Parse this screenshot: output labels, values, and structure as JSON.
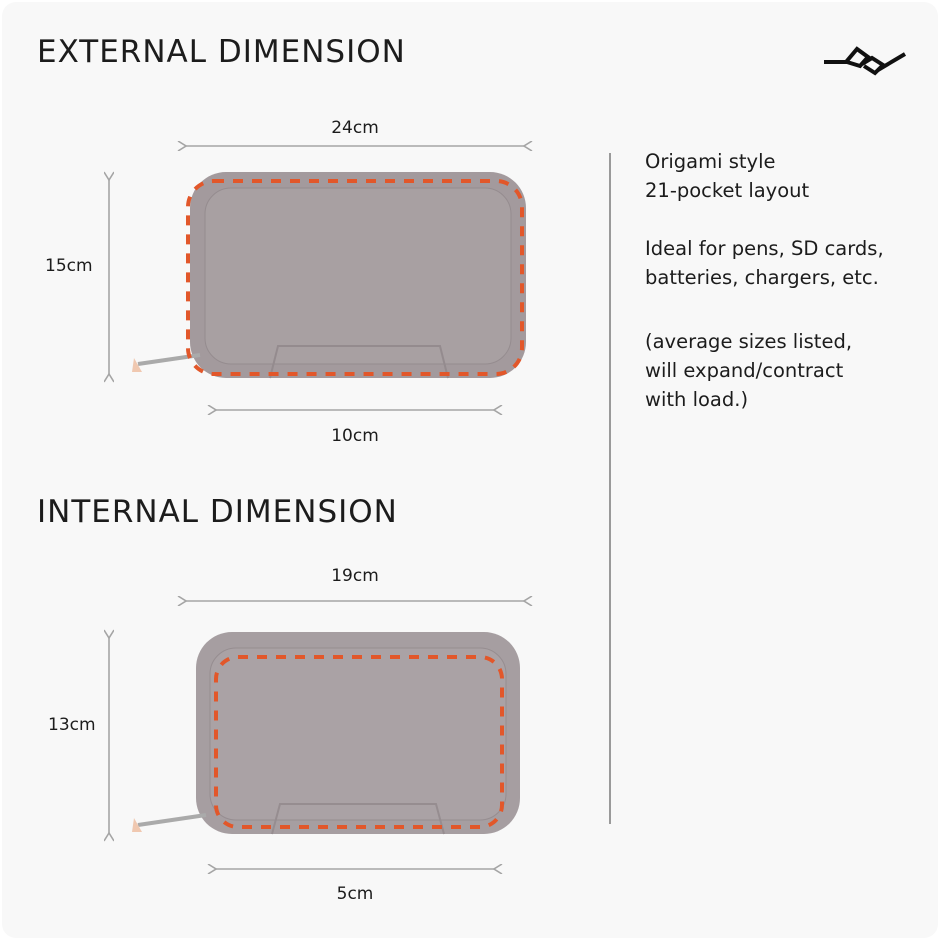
{
  "external": {
    "title": "EXTERNAL DIMENSION",
    "width": "24cm",
    "height": "15cm",
    "depth": "10cm"
  },
  "internal": {
    "title": "INTERNAL DIMENSION",
    "width": "19cm",
    "height": "13cm",
    "depth": "5cm"
  },
  "notes": {
    "line1": "Origami style",
    "line2": "21-pocket layout",
    "line3": "Ideal for pens, SD cards,",
    "line4": "batteries, chargers, etc.",
    "line5": "(average sizes listed,",
    "line6": "will expand/contract",
    "line7": "with load.)"
  },
  "logo": "PD",
  "colors": {
    "bag": "#a39a9d",
    "dash": "#e2572a",
    "arrow": "#a5a5a5",
    "text": "#1c1c1c"
  }
}
